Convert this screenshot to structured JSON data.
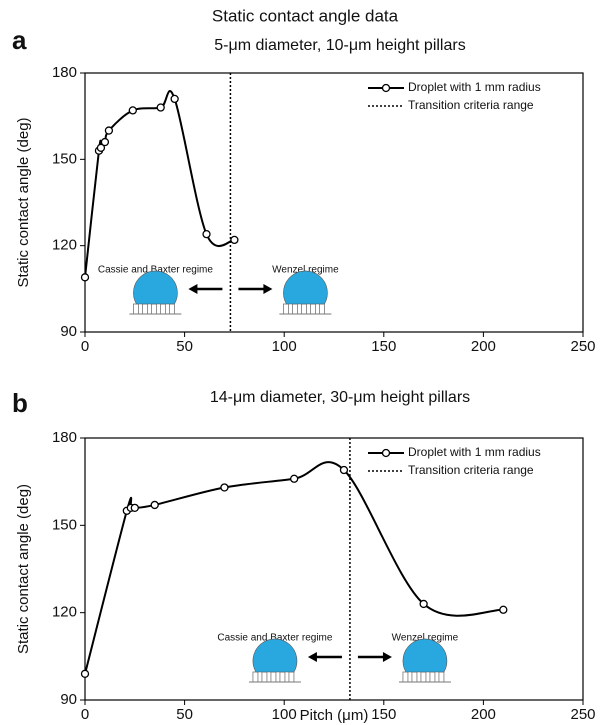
{
  "title": "Static contact angle data",
  "chart_data": [
    {
      "type": "line",
      "panel": "a",
      "title": "5-μm diameter, 10-μm height pillars",
      "ylabel": "Static contact angle (deg)",
      "x": [
        0,
        7,
        8,
        10,
        12,
        24,
        38,
        45,
        61,
        75
      ],
      "series": [
        {
          "name": "Droplet with 1 mm radius",
          "color": "#000000",
          "values": [
            109,
            153,
            154,
            156,
            160,
            167,
            168,
            171,
            124,
            122
          ]
        }
      ],
      "vline": {
        "value": 73,
        "name": "Transition criteria range"
      },
      "annotations": [
        "Cassie and Baxter regime",
        "Wenzel regime"
      ],
      "xlim": [
        0,
        250
      ],
      "xticks": [
        0,
        50,
        100,
        150,
        200,
        250
      ],
      "ylim": [
        90,
        180
      ],
      "yticks": [
        90,
        120,
        150,
        180
      ],
      "legend": "upper right"
    },
    {
      "type": "line",
      "panel": "b",
      "title": "14-μm diameter, 30-μm height pillars",
      "ylabel": "Static contact angle (deg)",
      "xlabel": "Pitch (μm)",
      "x": [
        0,
        21,
        23,
        25,
        35,
        70,
        105,
        130,
        170,
        210
      ],
      "series": [
        {
          "name": "Droplet with 1 mm radius",
          "color": "#000000",
          "values": [
            99,
            155,
            156,
            156,
            157,
            163,
            166,
            169,
            123,
            121
          ]
        }
      ],
      "vline": {
        "value": 133,
        "name": "Transition criteria range"
      },
      "annotations": [
        "Cassie and Baxter regime",
        "Wenzel regime"
      ],
      "xlim": [
        0,
        250
      ],
      "xticks": [
        0,
        50,
        100,
        150,
        200,
        250
      ],
      "ylim": [
        90,
        180
      ],
      "yticks": [
        90,
        120,
        150,
        180
      ],
      "legend": "upper right"
    }
  ]
}
